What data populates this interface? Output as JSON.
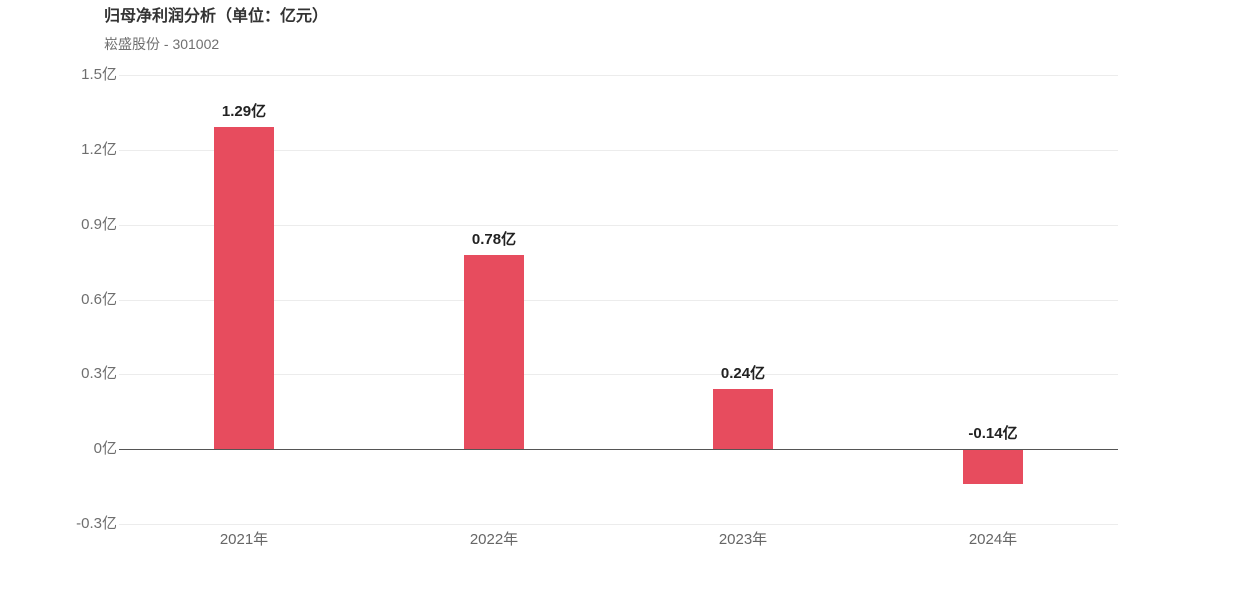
{
  "header": {
    "title": "归母净利润分析（单位：亿元）",
    "subtitle": "崧盛股份 - 301002"
  },
  "chart_data": {
    "type": "bar",
    "title": "归母净利润分析（单位：亿元）",
    "subtitle": "崧盛股份 - 301002",
    "categories": [
      "2021年",
      "2022年",
      "2023年",
      "2024年"
    ],
    "values": [
      1.29,
      0.78,
      0.24,
      -0.14
    ],
    "value_labels": [
      "1.29亿",
      "0.78亿",
      "0.24亿",
      "-0.14亿"
    ],
    "xlabel": "",
    "ylabel": "",
    "ylim": [
      -0.3,
      1.5
    ],
    "yticks": [
      1.5,
      1.2,
      0.9,
      0.6,
      0.3,
      0,
      -0.3
    ],
    "ytick_labels": [
      "1.5亿",
      "1.2亿",
      "0.9亿",
      "0.6亿",
      "0.3亿",
      "0亿",
      "-0.3亿"
    ],
    "grid": true,
    "legend": "none",
    "bar_color": "#e74c5e"
  },
  "colors": {
    "bar": "#e74c5e",
    "grid": "#ececec",
    "zero_line": "#555555",
    "ytick_label": "#6e6e6e",
    "xtick_label": "#666666",
    "value_label": "#222222",
    "title": "#333333",
    "subtitle": "#707070",
    "background": "#ffffff"
  }
}
